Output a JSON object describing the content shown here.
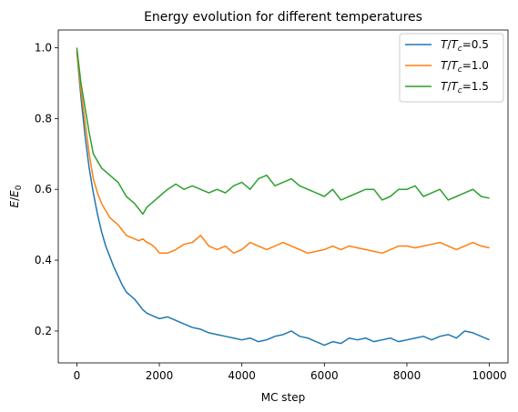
{
  "chart_data": {
    "type": "line",
    "title": "Energy evolution for different temperatures",
    "xlabel": "MC step",
    "ylabel": "E/E₀",
    "xlim": [
      -450,
      10450
    ],
    "ylim": [
      0.11,
      1.05
    ],
    "xticks": [
      0,
      2000,
      4000,
      6000,
      8000,
      10000
    ],
    "yticks": [
      0.2,
      0.4,
      0.6,
      0.8,
      1.0
    ],
    "xtick_labels": [
      "0",
      "2000",
      "4000",
      "6000",
      "8000",
      "10000"
    ],
    "ytick_labels": [
      "0.2",
      "0.4",
      "0.6",
      "0.8",
      "1.0"
    ],
    "legend_position": "top-right",
    "grid": false,
    "series": [
      {
        "name": "T/Tc=0.5",
        "label_var": "T",
        "label_sub": "c",
        "label_value": "=0.5",
        "color": "#1f77b4",
        "x": [
          0,
          100,
          200,
          300,
          400,
          500,
          600,
          700,
          800,
          900,
          1000,
          1100,
          1200,
          1300,
          1400,
          1500,
          1600,
          1700,
          1800,
          1900,
          2000,
          2200,
          2400,
          2600,
          2800,
          3000,
          3200,
          3400,
          3600,
          3800,
          4000,
          4200,
          4400,
          4600,
          4800,
          5000,
          5200,
          5400,
          5600,
          5800,
          6000,
          6200,
          6400,
          6600,
          6800,
          7000,
          7200,
          7400,
          7600,
          7800,
          8000,
          8200,
          8400,
          8600,
          8800,
          9000,
          9200,
          9400,
          9600,
          9800,
          10000
        ],
        "y": [
          0.99,
          0.86,
          0.75,
          0.66,
          0.59,
          0.53,
          0.48,
          0.44,
          0.41,
          0.38,
          0.355,
          0.33,
          0.31,
          0.3,
          0.29,
          0.275,
          0.26,
          0.25,
          0.245,
          0.24,
          0.235,
          0.24,
          0.23,
          0.22,
          0.21,
          0.205,
          0.195,
          0.19,
          0.185,
          0.18,
          0.175,
          0.18,
          0.17,
          0.175,
          0.185,
          0.19,
          0.2,
          0.185,
          0.18,
          0.17,
          0.16,
          0.17,
          0.165,
          0.18,
          0.175,
          0.18,
          0.17,
          0.175,
          0.18,
          0.17,
          0.175,
          0.18,
          0.185,
          0.175,
          0.185,
          0.19,
          0.18,
          0.2,
          0.195,
          0.185,
          0.175
        ]
      },
      {
        "name": "T/Tc=1.0",
        "label_var": "T",
        "label_sub": "c",
        "label_value": "=1.0",
        "color": "#ff7f0e",
        "x": [
          0,
          100,
          200,
          300,
          400,
          500,
          600,
          700,
          800,
          900,
          1000,
          1100,
          1200,
          1300,
          1400,
          1500,
          1600,
          1700,
          1800,
          1900,
          2000,
          2200,
          2400,
          2600,
          2800,
          3000,
          3200,
          3400,
          3600,
          3800,
          4000,
          4200,
          4400,
          4600,
          4800,
          5000,
          5200,
          5400,
          5600,
          5800,
          6000,
          6200,
          6400,
          6600,
          6800,
          7000,
          7200,
          7400,
          7600,
          7800,
          8000,
          8200,
          8400,
          8600,
          8800,
          9000,
          9200,
          9400,
          9600,
          9800,
          10000
        ],
        "y": [
          0.99,
          0.88,
          0.79,
          0.7,
          0.63,
          0.59,
          0.56,
          0.54,
          0.52,
          0.51,
          0.5,
          0.485,
          0.47,
          0.465,
          0.46,
          0.455,
          0.46,
          0.45,
          0.445,
          0.435,
          0.42,
          0.42,
          0.43,
          0.445,
          0.45,
          0.47,
          0.44,
          0.43,
          0.44,
          0.42,
          0.43,
          0.45,
          0.44,
          0.43,
          0.44,
          0.45,
          0.44,
          0.43,
          0.42,
          0.425,
          0.43,
          0.44,
          0.43,
          0.44,
          0.435,
          0.43,
          0.425,
          0.42,
          0.43,
          0.44,
          0.44,
          0.435,
          0.44,
          0.445,
          0.45,
          0.44,
          0.43,
          0.44,
          0.45,
          0.44,
          0.435
        ]
      },
      {
        "name": "T/Tc=1.5",
        "label_var": "T",
        "label_sub": "c",
        "label_value": "=1.5",
        "color": "#2ca02c",
        "x": [
          0,
          100,
          200,
          300,
          400,
          500,
          600,
          700,
          800,
          900,
          1000,
          1100,
          1200,
          1300,
          1400,
          1500,
          1600,
          1700,
          1800,
          1900,
          2000,
          2200,
          2400,
          2600,
          2800,
          3000,
          3200,
          3400,
          3600,
          3800,
          4000,
          4200,
          4400,
          4600,
          4800,
          5000,
          5200,
          5400,
          5600,
          5800,
          6000,
          6200,
          6400,
          6600,
          6800,
          7000,
          7200,
          7400,
          7600,
          7800,
          8000,
          8200,
          8400,
          8600,
          8800,
          9000,
          9200,
          9400,
          9600,
          9800,
          10000
        ],
        "y": [
          1.0,
          0.9,
          0.83,
          0.76,
          0.7,
          0.68,
          0.66,
          0.65,
          0.64,
          0.63,
          0.62,
          0.6,
          0.58,
          0.57,
          0.56,
          0.545,
          0.53,
          0.55,
          0.56,
          0.57,
          0.58,
          0.6,
          0.615,
          0.6,
          0.61,
          0.6,
          0.59,
          0.6,
          0.59,
          0.61,
          0.62,
          0.6,
          0.63,
          0.64,
          0.61,
          0.62,
          0.63,
          0.61,
          0.6,
          0.59,
          0.58,
          0.6,
          0.57,
          0.58,
          0.59,
          0.6,
          0.6,
          0.57,
          0.58,
          0.6,
          0.6,
          0.61,
          0.58,
          0.59,
          0.6,
          0.57,
          0.58,
          0.59,
          0.6,
          0.58,
          0.575
        ]
      }
    ]
  }
}
